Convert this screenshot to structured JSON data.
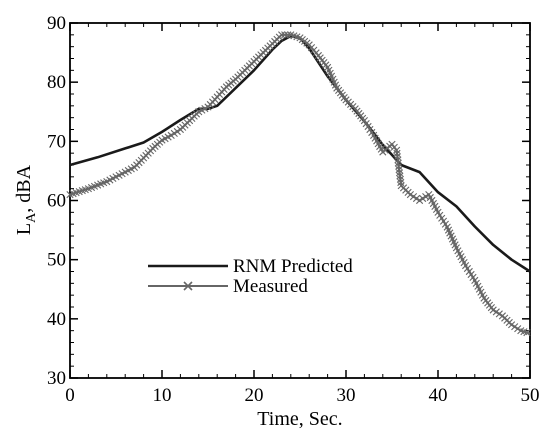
{
  "chart_data": {
    "type": "line",
    "title": "",
    "xlabel": "Time, Sec.",
    "ylabel": "L_A, dBA",
    "ylabel_main": "L",
    "ylabel_sub": "A",
    "ylabel_rest": ", dBA",
    "xlim": [
      0,
      50
    ],
    "ylim": [
      30,
      90
    ],
    "x_ticks": [
      "0",
      "10",
      "20",
      "30",
      "40",
      "50"
    ],
    "y_ticks": [
      "30",
      "40",
      "50",
      "60",
      "70",
      "80",
      "90"
    ],
    "grid": false,
    "legend_position": "center-left",
    "series": [
      {
        "name": "RNM Predicted",
        "color": "#1a1a1a",
        "style": "solid",
        "x": [
          0,
          3,
          6,
          8,
          10,
          12,
          14,
          15,
          16,
          18,
          20,
          22,
          23,
          24,
          25,
          26,
          28,
          30,
          32,
          34,
          36,
          38,
          40,
          42,
          44,
          46,
          48,
          50
        ],
        "y": [
          66,
          67.3,
          68.8,
          69.8,
          71.6,
          73.6,
          75.5,
          75.5,
          76,
          79,
          82,
          85.5,
          87,
          87.8,
          87.5,
          85.7,
          81,
          77,
          73.4,
          69.4,
          66,
          64.8,
          61.4,
          59,
          55.6,
          52.5,
          50,
          48
        ]
      },
      {
        "name": "Measured",
        "color": "#666666",
        "style": "solid-with-x-markers",
        "x": [
          0,
          1,
          2,
          3,
          4,
          5,
          6,
          7,
          8,
          9,
          10,
          11,
          12,
          13,
          14,
          15,
          16,
          17,
          18,
          19,
          20,
          21,
          22,
          23,
          24,
          25,
          26,
          27,
          28,
          29,
          30,
          31,
          32,
          33,
          34,
          35,
          35.5,
          36,
          37,
          38,
          39,
          40,
          41,
          42,
          43,
          44,
          45,
          46,
          47,
          48,
          49,
          50
        ],
        "y": [
          61,
          61.5,
          62,
          62.6,
          63.2,
          64,
          64.8,
          65.6,
          67.2,
          68.8,
          70.2,
          71,
          72,
          73.5,
          75,
          75.8,
          77.5,
          79.2,
          80.5,
          82,
          83.5,
          85,
          86.5,
          88,
          88,
          87.5,
          86.3,
          84.5,
          82.5,
          79,
          77,
          75.5,
          73.5,
          71,
          68.2,
          69.5,
          68.5,
          62.5,
          61,
          60,
          61,
          58,
          55.5,
          52,
          49,
          46.5,
          43.5,
          41.5,
          40.5,
          39,
          38,
          37.5
        ]
      }
    ]
  }
}
